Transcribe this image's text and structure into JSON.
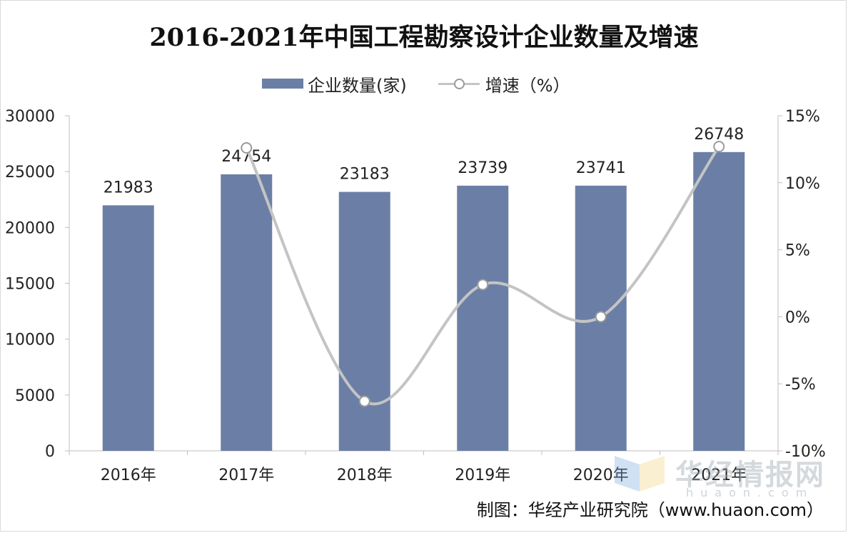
{
  "title": "2016-2021年中国工程勘察设计企业数量及增速",
  "source": "制图：华经产业研究院（www.huaon.com）",
  "watermark": {
    "name": "华经情报网",
    "sub": "huaon.com"
  },
  "colors": {
    "bar": "#6b7fa6",
    "line": "#c4c4c4",
    "grid": "#bfbfbf",
    "axis_text": "#222222"
  },
  "legend": {
    "bar_label": "企业数量(家)",
    "line_label": "增速（%）",
    "position": "top"
  },
  "chart_data": {
    "type": "bar",
    "categories": [
      "2016年",
      "2017年",
      "2018年",
      "2019年",
      "2020年",
      "2021年"
    ],
    "series": [
      {
        "name": "企业数量(家)",
        "type": "bar",
        "axis": "left",
        "values": [
          21983,
          24754,
          23183,
          23739,
          23741,
          26748
        ]
      },
      {
        "name": "增速（%）",
        "type": "line",
        "axis": "right",
        "values": [
          null,
          12.6,
          -6.3,
          2.4,
          0.0,
          12.7
        ]
      }
    ],
    "data_labels": [
      "21983",
      "24754",
      "23183",
      "23739",
      "23741",
      "26748"
    ],
    "y_left": {
      "min": 0,
      "max": 30000,
      "ticks": [
        0,
        5000,
        10000,
        15000,
        20000,
        25000,
        30000
      ]
    },
    "y_right": {
      "min": -10,
      "max": 15,
      "ticks": [
        -10,
        -5,
        0,
        5,
        10,
        15
      ],
      "tick_labels": [
        "-10%",
        "-5%",
        "0%",
        "5%",
        "10%",
        "15%"
      ]
    },
    "grid": false
  }
}
